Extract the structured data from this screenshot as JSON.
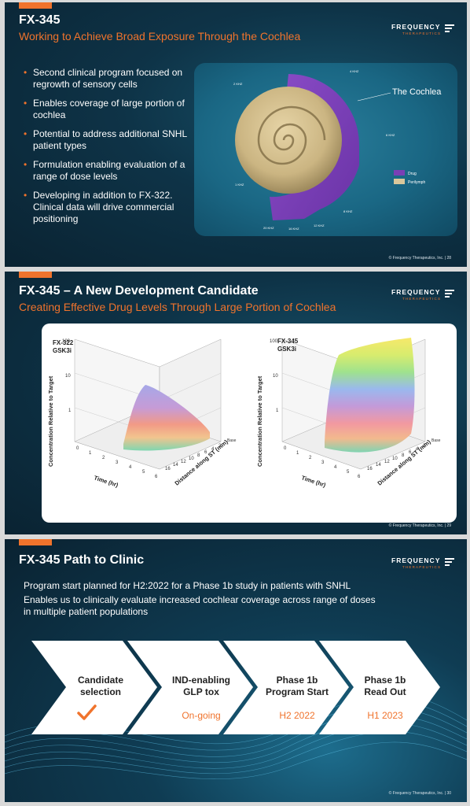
{
  "brand": {
    "name": "FREQUENCY",
    "sub": "THERAPEUTICS"
  },
  "slides": [
    {
      "title": "FX-345",
      "subtitle": "Working to Achieve Broad Exposure Through the Cochlea",
      "bullets": [
        "Second clinical program focused on regrowth of sensory cells",
        "Enables coverage of large portion of cochlea",
        "Potential to address additional SNHL patient types",
        "Formulation enabling evaluation of a range of dose levels",
        "Developing in addition to FX-322. Clinical data will drive commercial positioning"
      ],
      "cochlea": {
        "label": "The Cochlea",
        "freq_labels": [
          "4 KHZ",
          "2 KHZ",
          "6 KHZ",
          "1 KHZ",
          "8 KHZ",
          "12 KHZ",
          "16 KHZ",
          "20 KHZ"
        ],
        "legend": [
          {
            "name": "Drug",
            "color": "#7a3fb5"
          },
          {
            "name": "Perilymph",
            "color": "#d9c79b"
          }
        ]
      },
      "footer": "© Frequency Therapeutics, Inc.  |  28"
    },
    {
      "title": "FX-345 – A New Development Candidate",
      "subtitle": "Creating Effective Drug Levels Through Large Portion of Cochlea",
      "charts": [
        {
          "name_line1": "FX-322",
          "name_line2": "GSK3i",
          "zlabel": "Concentration Relative to Target",
          "xlabel": "Time (hr)",
          "ylabel": "Distance along ST (mm)",
          "z_ticks": [
            "100",
            "10",
            "1"
          ],
          "x_ticks": [
            "0",
            "1",
            "2",
            "3",
            "4",
            "5",
            "6"
          ],
          "y_ticks": [
            "Base",
            "2",
            "4",
            "6",
            "8",
            "10",
            "12",
            "14",
            "16"
          ]
        },
        {
          "name_line1": "FX-345",
          "name_line2": "GSK3i",
          "zlabel": "Concentration Relative to Target",
          "xlabel": "Time (hr)",
          "ylabel": "Distance along ST (mm)",
          "z_ticks": [
            "100",
            "10",
            "1"
          ],
          "x_ticks": [
            "0",
            "1",
            "2",
            "3",
            "4",
            "5",
            "6"
          ],
          "y_ticks": [
            "Base",
            "2",
            "4",
            "6",
            "8",
            "10",
            "12",
            "14",
            "16"
          ]
        }
      ],
      "footer": "© Frequency Therapeutics, Inc.  |  29"
    },
    {
      "title": "FX-345 Path to Clinic",
      "text1": "Program start planned for H2:2022 for a Phase 1b study in patients with SNHL",
      "text2_line1": "Enables us to clinically evaluate increased cochlear coverage across range of doses",
      "text2_line2": "in multiple patient populations",
      "steps": [
        {
          "line1": "Candidate",
          "line2": "selection",
          "status": ""
        },
        {
          "line1": "IND-enabling",
          "line2": "GLP tox",
          "status": "On-going"
        },
        {
          "line1": "Phase 1b",
          "line2": "Program Start",
          "status": "H2 2022"
        },
        {
          "line1": "Phase 1b",
          "line2": "Read Out",
          "status": "H1 2023"
        }
      ],
      "footer": "© Frequency Therapeutics, Inc.  |  30"
    }
  ]
}
